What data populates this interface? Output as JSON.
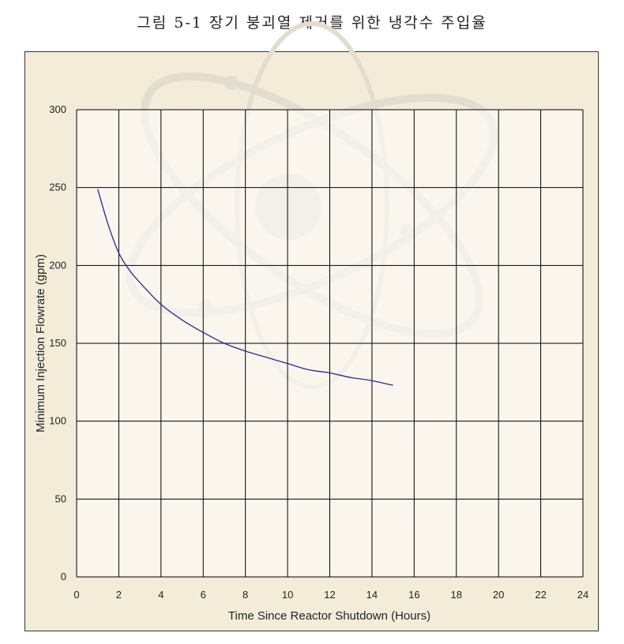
{
  "caption": "그림 5-1 장기 붕괴열 제거를 위한 냉각수 주입율",
  "colors": {
    "background": "#f3ecd9",
    "plot_area": "#ffffff",
    "grid": "#000000",
    "line": "#2a2a8a",
    "watermark": "#e3ddd0"
  },
  "chart_data": {
    "type": "line",
    "xlabel": "Time Since Reactor Shutdown (Hours)",
    "ylabel": "Minimum Injection Flowrate (gpm)",
    "xlim": [
      0,
      24
    ],
    "ylim": [
      0,
      300
    ],
    "x_ticks": [
      0,
      2,
      4,
      6,
      8,
      10,
      12,
      14,
      16,
      18,
      20,
      22,
      24
    ],
    "y_ticks": [
      0,
      50,
      100,
      150,
      200,
      250,
      300
    ],
    "grid": true,
    "series": [
      {
        "x": [
          1,
          1.5,
          2,
          2.5,
          3,
          4,
          5,
          6,
          7,
          8,
          9,
          10,
          11,
          12,
          13,
          14,
          15
        ],
        "y": [
          249,
          226,
          208,
          197,
          189,
          175,
          165,
          157,
          150,
          145,
          141,
          137,
          133,
          131,
          128,
          126,
          123
        ]
      }
    ]
  }
}
